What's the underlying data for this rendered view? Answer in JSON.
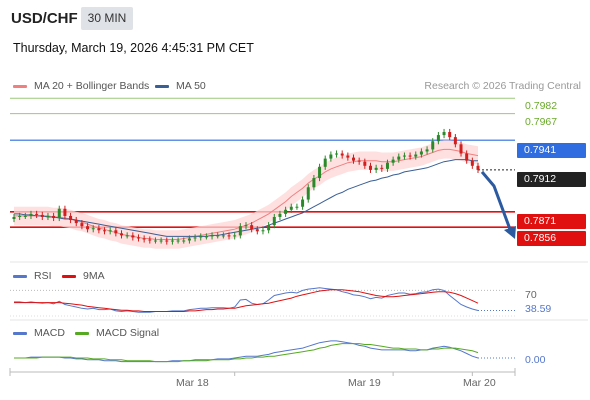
{
  "header": {
    "symbol": "USD/CHF",
    "timeframe": "30 MIN",
    "datetime": "Thursday, March 19, 2026 4:45:31 PM CET"
  },
  "legend": {
    "ma20_label": "MA 20 + Bollinger Bands",
    "ma50_label": "MA 50",
    "credit": "Research © 2026 Trading Central"
  },
  "colors": {
    "ma20": "#f08080",
    "ma50": "#3a5f95",
    "up_candle": "#2a8a2a",
    "down_candle": "#d11e1e",
    "support": "#e01010",
    "resistance_green": "#9cc97a",
    "pivot_blue": "#2f6de0",
    "current_price": "#222222",
    "rsi": "#5577cc",
    "rsi_ma": "#e01010",
    "macd": "#5577cc",
    "macd_signal": "#55aa22",
    "arrow": "#2b5aa0"
  },
  "levels": {
    "r2": "0.7982",
    "r1": "0.7967",
    "pivot": "0.7941",
    "current": "0.7912",
    "s1": "0.7871",
    "s2": "0.7856"
  },
  "rsi_panel": {
    "rsi_label": "RSI",
    "ma_label": "9MA",
    "level_label": "70",
    "value_label": "38.59"
  },
  "macd_panel": {
    "macd_label": "MACD",
    "signal_label": "MACD Signal",
    "value_label": "0.00"
  },
  "x_axis": [
    "Mar 18",
    "Mar 19",
    "Mar 20"
  ],
  "chart_data": {
    "type": "candlestick",
    "title": "USD/CHF",
    "ylim": [
      0.7822,
      0.7992
    ],
    "closes": [
      0.7866,
      0.7867,
      0.7867,
      0.7869,
      0.7868,
      0.7866,
      0.7867,
      0.7865,
      0.7874,
      0.7867,
      0.7863,
      0.786,
      0.7857,
      0.7854,
      0.7855,
      0.7853,
      0.7852,
      0.7853,
      0.785,
      0.7848,
      0.7848,
      0.7846,
      0.7845,
      0.7844,
      0.7843,
      0.7843,
      0.7843,
      0.7842,
      0.7843,
      0.7843,
      0.7843,
      0.7845,
      0.7846,
      0.7847,
      0.7847,
      0.7848,
      0.7848,
      0.7848,
      0.7847,
      0.7848,
      0.7857,
      0.7858,
      0.7854,
      0.7852,
      0.7853,
      0.7858,
      0.7866,
      0.7869,
      0.7873,
      0.7876,
      0.7876,
      0.7883,
      0.7895,
      0.7904,
      0.7915,
      0.7923,
      0.7927,
      0.7928,
      0.7926,
      0.7924,
      0.7921,
      0.792,
      0.7916,
      0.7912,
      0.7914,
      0.7913,
      0.7919,
      0.7922,
      0.7925,
      0.7926,
      0.7925,
      0.7927,
      0.793,
      0.7932,
      0.794,
      0.7946,
      0.7949,
      0.7944,
      0.7937,
      0.7928,
      0.7921,
      0.7916,
      0.7912
    ],
    "ma20": [
      0.7867,
      0.7867,
      0.7867,
      0.7867,
      0.7867,
      0.7867,
      0.7867,
      0.7866,
      0.7866,
      0.7865,
      0.7864,
      0.7862,
      0.7861,
      0.7859,
      0.7857,
      0.7855,
      0.7854,
      0.7852,
      0.7851,
      0.7849,
      0.7848,
      0.7847,
      0.7846,
      0.7845,
      0.7845,
      0.7844,
      0.7844,
      0.7844,
      0.7844,
      0.7844,
      0.7845,
      0.7846,
      0.7847,
      0.7848,
      0.7849,
      0.785,
      0.7851,
      0.7852,
      0.7853,
      0.7854,
      0.7856,
      0.7858,
      0.786,
      0.7863,
      0.7866,
      0.7869,
      0.7873,
      0.7877,
      0.7881,
      0.7886,
      0.789,
      0.7894,
      0.7899,
      0.7903,
      0.7906,
      0.791,
      0.7913,
      0.7915,
      0.7917,
      0.7919,
      0.792,
      0.7921,
      0.7921,
      0.7921,
      0.7921,
      0.792,
      0.792,
      0.792,
      0.7921,
      0.7922,
      0.7923,
      0.7924,
      0.7925,
      0.7927,
      0.7929,
      0.7931,
      0.7932,
      0.7932,
      0.7931,
      0.793,
      0.7928,
      0.7927,
      0.7926
    ],
    "ma50": [
      0.7869,
      0.7869,
      0.7868,
      0.7868,
      0.7867,
      0.7867,
      0.7866,
      0.7866,
      0.7865,
      0.7864,
      0.7864,
      0.7863,
      0.7862,
      0.7861,
      0.786,
      0.7859,
      0.7858,
      0.7857,
      0.7856,
      0.7855,
      0.7854,
      0.7853,
      0.7852,
      0.7851,
      0.785,
      0.7849,
      0.7848,
      0.7847,
      0.7847,
      0.7847,
      0.7847,
      0.7847,
      0.7847,
      0.7847,
      0.7847,
      0.7848,
      0.7848,
      0.7849,
      0.785,
      0.7851,
      0.7852,
      0.7853,
      0.7854,
      0.7855,
      0.7856,
      0.7858,
      0.786,
      0.7862,
      0.7864,
      0.7866,
      0.7868,
      0.787,
      0.7873,
      0.7876,
      0.7879,
      0.7882,
      0.7885,
      0.7888,
      0.789,
      0.7893,
      0.7895,
      0.7897,
      0.7899,
      0.7901,
      0.7902,
      0.7904,
      0.7905,
      0.7907,
      0.7908,
      0.791,
      0.7911,
      0.7912,
      0.7913,
      0.7914,
      0.7916,
      0.7918,
      0.792,
      0.7921,
      0.7922,
      0.7922,
      0.7922,
      0.7921,
      0.7921
    ],
    "bollinger_width": 0.0009,
    "rsi": [
      52,
      52,
      51,
      52,
      51,
      50,
      51,
      49,
      53,
      48,
      46,
      44,
      42,
      41,
      42,
      40,
      40,
      41,
      38,
      37,
      38,
      37,
      36,
      36,
      36,
      37,
      37,
      37,
      38,
      38,
      38,
      40,
      41,
      42,
      42,
      43,
      43,
      43,
      42,
      44,
      55,
      56,
      50,
      48,
      49,
      55,
      62,
      64,
      66,
      67,
      66,
      70,
      72,
      73,
      74,
      73,
      72,
      71,
      68,
      66,
      63,
      62,
      60,
      57,
      59,
      58,
      62,
      64,
      66,
      66,
      64,
      65,
      67,
      68,
      71,
      72,
      70,
      62,
      55,
      48,
      44,
      41,
      38.59
    ],
    "rsi_ma": [
      51,
      51,
      51,
      51,
      51,
      51,
      51,
      51,
      51,
      50,
      49,
      48,
      47,
      45,
      44,
      43,
      42,
      41,
      40,
      39,
      39,
      38,
      38,
      37,
      37,
      37,
      37,
      37,
      37,
      37,
      37,
      38,
      38,
      39,
      40,
      40,
      41,
      41,
      42,
      42,
      44,
      46,
      47,
      48,
      49,
      50,
      52,
      54,
      56,
      58,
      61,
      63,
      65,
      67,
      69,
      70,
      71,
      71,
      71,
      70,
      69,
      68,
      66,
      64,
      62,
      61,
      60,
      60,
      61,
      62,
      63,
      64,
      65,
      66,
      67,
      68,
      68,
      67,
      65,
      62,
      58,
      54,
      50
    ],
    "macd": [
      0.0,
      0.0,
      0.0,
      0.0001,
      0.0001,
      0.0001,
      0.0001,
      0.0001,
      0.0001,
      0.0,
      0.0,
      -0.0001,
      -0.0001,
      -0.0002,
      -0.0002,
      -0.0002,
      -0.0003,
      -0.0003,
      -0.0003,
      -0.0004,
      -0.0004,
      -0.0004,
      -0.0004,
      -0.0004,
      -0.0004,
      -0.0004,
      -0.0004,
      -0.0004,
      -0.0003,
      -0.0003,
      -0.0003,
      -0.0003,
      -0.0002,
      -0.0002,
      -0.0002,
      -0.0002,
      -0.0001,
      -0.0001,
      -0.0001,
      0.0,
      0.0001,
      0.0002,
      0.0002,
      0.0002,
      0.0003,
      0.0004,
      0.0006,
      0.0007,
      0.0008,
      0.0009,
      0.001,
      0.0011,
      0.0013,
      0.0015,
      0.0017,
      0.0018,
      0.0019,
      0.0019,
      0.0018,
      0.0017,
      0.0016,
      0.0014,
      0.0013,
      0.0011,
      0.001,
      0.0009,
      0.0009,
      0.0009,
      0.0009,
      0.0009,
      0.0008,
      0.0008,
      0.0009,
      0.0009,
      0.0011,
      0.0012,
      0.0013,
      0.0012,
      0.001,
      0.0008,
      0.0005,
      0.0002,
      0.0
    ],
    "macd_signal": [
      0.0,
      0.0,
      0.0,
      0.0,
      0.0,
      0.0001,
      0.0001,
      0.0001,
      0.0001,
      0.0001,
      0.0001,
      0.0,
      0.0,
      0.0,
      -0.0001,
      -0.0001,
      -0.0001,
      -0.0002,
      -0.0002,
      -0.0002,
      -0.0003,
      -0.0003,
      -0.0003,
      -0.0003,
      -0.0003,
      -0.0004,
      -0.0004,
      -0.0004,
      -0.0004,
      -0.0004,
      -0.0003,
      -0.0003,
      -0.0003,
      -0.0003,
      -0.0003,
      -0.0002,
      -0.0002,
      -0.0002,
      -0.0002,
      -0.0001,
      -0.0001,
      0.0,
      0.0,
      0.0001,
      0.0001,
      0.0002,
      0.0002,
      0.0003,
      0.0004,
      0.0005,
      0.0006,
      0.0007,
      0.0008,
      0.0009,
      0.0011,
      0.0012,
      0.0014,
      0.0015,
      0.0016,
      0.0016,
      0.0016,
      0.0016,
      0.0015,
      0.0015,
      0.0014,
      0.0013,
      0.0012,
      0.0011,
      0.0011,
      0.001,
      0.001,
      0.001,
      0.0009,
      0.0009,
      0.001,
      0.001,
      0.0011,
      0.0011,
      0.0011,
      0.001,
      0.0009,
      0.0008,
      0.0006
    ],
    "x_tick_positions": {
      "Mar 18": 39,
      "Mar 19": 67,
      "Mar 20": 81
    }
  }
}
